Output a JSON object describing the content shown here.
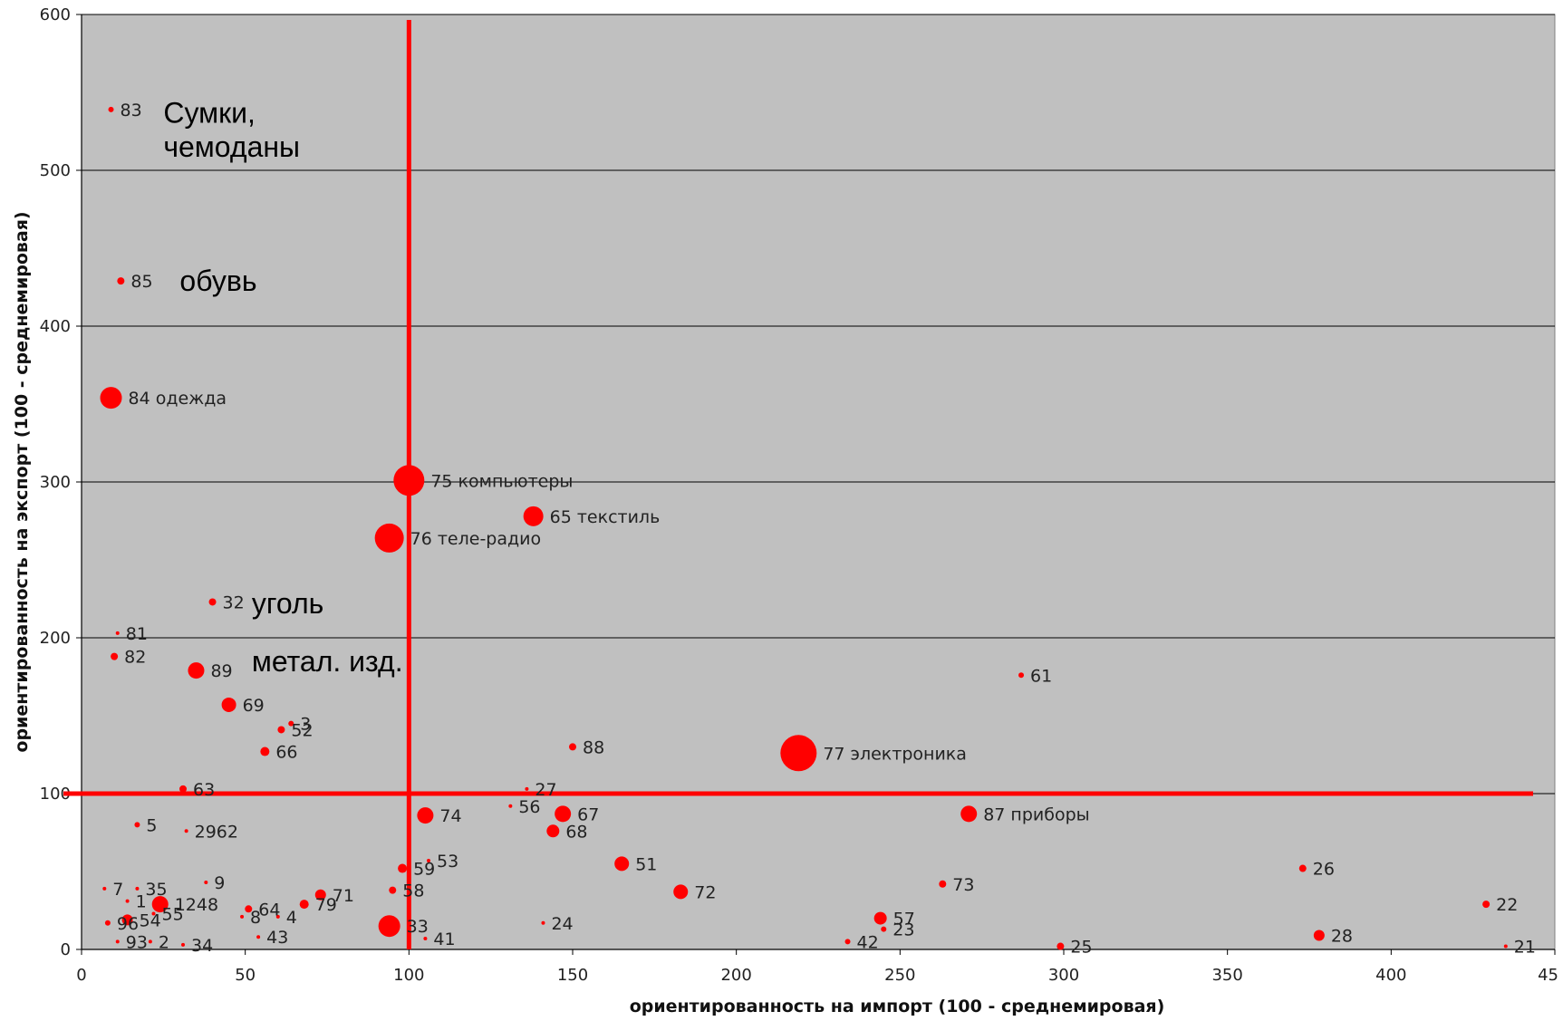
{
  "chart_data": {
    "type": "scatter",
    "title": "",
    "xlabel": "ориентированность на импорт (100 - среднемировая)",
    "ylabel": "ориентированность на экспорт (100 - среднемировая)",
    "xlim": [
      0,
      450
    ],
    "ylim": [
      0,
      600
    ],
    "x_ticks": [
      "0",
      "50",
      "100",
      "150",
      "200",
      "250",
      "300",
      "350",
      "400",
      "45"
    ],
    "y_ticks": [
      "0",
      "100",
      "200",
      "300",
      "400",
      "500",
      "600"
    ],
    "grid": "horizontal",
    "plot_background": "#c0c0c0",
    "marker_color": "#ff0000",
    "reference_lines": [
      {
        "axis": "x",
        "value": 100
      },
      {
        "axis": "y",
        "value": 100
      }
    ],
    "points": [
      {
        "label": "83",
        "x": 9,
        "y": 539,
        "size": 3
      },
      {
        "label": "85",
        "x": 12,
        "y": 429,
        "size": 4
      },
      {
        "label": "84 одежда",
        "x": 9,
        "y": 354,
        "size": 12
      },
      {
        "label": "75 компьютеры",
        "x": 100,
        "y": 301,
        "size": 17
      },
      {
        "label": "65 текстиль",
        "x": 138,
        "y": 278,
        "size": 11
      },
      {
        "label": "76 теле-радио",
        "x": 94,
        "y": 264,
        "size": 16
      },
      {
        "label": "32",
        "x": 40,
        "y": 223,
        "size": 4
      },
      {
        "label": "81",
        "x": 11,
        "y": 203,
        "size": 2
      },
      {
        "label": "82",
        "x": 10,
        "y": 188,
        "size": 4
      },
      {
        "label": "89",
        "x": 35,
        "y": 179,
        "size": 9
      },
      {
        "label": "61",
        "x": 287,
        "y": 176,
        "size": 3
      },
      {
        "label": "69",
        "x": 45,
        "y": 157,
        "size": 8
      },
      {
        "label": "3",
        "x": 64,
        "y": 145,
        "size": 3
      },
      {
        "label": "52",
        "x": 61,
        "y": 141,
        "size": 4
      },
      {
        "label": "88",
        "x": 150,
        "y": 130,
        "size": 4
      },
      {
        "label": "66",
        "x": 56,
        "y": 127,
        "size": 5
      },
      {
        "label": "77 электроника",
        "x": 219,
        "y": 126,
        "size": 20
      },
      {
        "label": "63",
        "x": 31,
        "y": 103,
        "size": 4
      },
      {
        "label": "27",
        "x": 136,
        "y": 103,
        "size": 2
      },
      {
        "label": "56",
        "x": 131,
        "y": 92,
        "size": 2
      },
      {
        "label": "74",
        "x": 105,
        "y": 86,
        "size": 9
      },
      {
        "label": "67",
        "x": 147,
        "y": 87,
        "size": 9
      },
      {
        "label": "87 приборы",
        "x": 271,
        "y": 87,
        "size": 9
      },
      {
        "label": "5",
        "x": 17,
        "y": 80,
        "size": 3
      },
      {
        "label": "2962",
        "x": 32,
        "y": 76,
        "size": 2
      },
      {
        "label": "68",
        "x": 144,
        "y": 76,
        "size": 7
      },
      {
        "label": "53",
        "x": 106,
        "y": 57,
        "size": 2
      },
      {
        "label": "51",
        "x": 165,
        "y": 55,
        "size": 8
      },
      {
        "label": "59",
        "x": 98,
        "y": 52,
        "size": 5
      },
      {
        "label": "26",
        "x": 373,
        "y": 52,
        "size": 4
      },
      {
        "label": "9",
        "x": 38,
        "y": 43,
        "size": 2
      },
      {
        "label": "73",
        "x": 263,
        "y": 42,
        "size": 4
      },
      {
        "label": "7",
        "x": 7,
        "y": 39,
        "size": 2
      },
      {
        "label": "35",
        "x": 17,
        "y": 39,
        "size": 2
      },
      {
        "label": "58",
        "x": 95,
        "y": 38,
        "size": 4
      },
      {
        "label": "72",
        "x": 183,
        "y": 37,
        "size": 8
      },
      {
        "label": "71",
        "x": 73,
        "y": 35,
        "size": 6
      },
      {
        "label": "1",
        "x": 14,
        "y": 31,
        "size": 2
      },
      {
        "label": "1248",
        "x": 24,
        "y": 29,
        "size": 9
      },
      {
        "label": "79",
        "x": 68,
        "y": 29,
        "size": 5
      },
      {
        "label": "22",
        "x": 429,
        "y": 29,
        "size": 4
      },
      {
        "label": "64",
        "x": 51,
        "y": 26,
        "size": 4
      },
      {
        "label": "55",
        "x": 22,
        "y": 23,
        "size": 2
      },
      {
        "label": "8",
        "x": 49,
        "y": 21,
        "size": 2
      },
      {
        "label": "4",
        "x": 60,
        "y": 21,
        "size": 2
      },
      {
        "label": "57",
        "x": 244,
        "y": 20,
        "size": 7
      },
      {
        "label": "54",
        "x": 14,
        "y": 19,
        "size": 6
      },
      {
        "label": "96",
        "x": 8,
        "y": 17,
        "size": 3
      },
      {
        "label": "24",
        "x": 141,
        "y": 17,
        "size": 2
      },
      {
        "label": "33",
        "x": 94,
        "y": 15,
        "size": 12
      },
      {
        "label": "23",
        "x": 245,
        "y": 13,
        "size": 3
      },
      {
        "label": "28",
        "x": 378,
        "y": 9,
        "size": 6
      },
      {
        "label": "43",
        "x": 54,
        "y": 8,
        "size": 2
      },
      {
        "label": "41",
        "x": 105,
        "y": 7,
        "size": 2
      },
      {
        "label": "93",
        "x": 11,
        "y": 5,
        "size": 2
      },
      {
        "label": "2",
        "x": 21,
        "y": 5,
        "size": 2
      },
      {
        "label": "34",
        "x": 31,
        "y": 3,
        "size": 2
      },
      {
        "label": "42",
        "x": 234,
        "y": 5,
        "size": 3
      },
      {
        "label": "25",
        "x": 299,
        "y": 2,
        "size": 4
      },
      {
        "label": "21",
        "x": 435,
        "y": 2,
        "size": 2
      }
    ],
    "annotations": [
      {
        "text": "Сумки,",
        "x": 25,
        "y": 537
      },
      {
        "text": "чемоданы",
        "x": 25,
        "y": 515
      },
      {
        "text": "обувь",
        "x": 30,
        "y": 429
      },
      {
        "text": "уголь",
        "x": 52,
        "y": 222
      },
      {
        "text": "метал. изд.",
        "x": 52,
        "y": 185
      }
    ]
  }
}
